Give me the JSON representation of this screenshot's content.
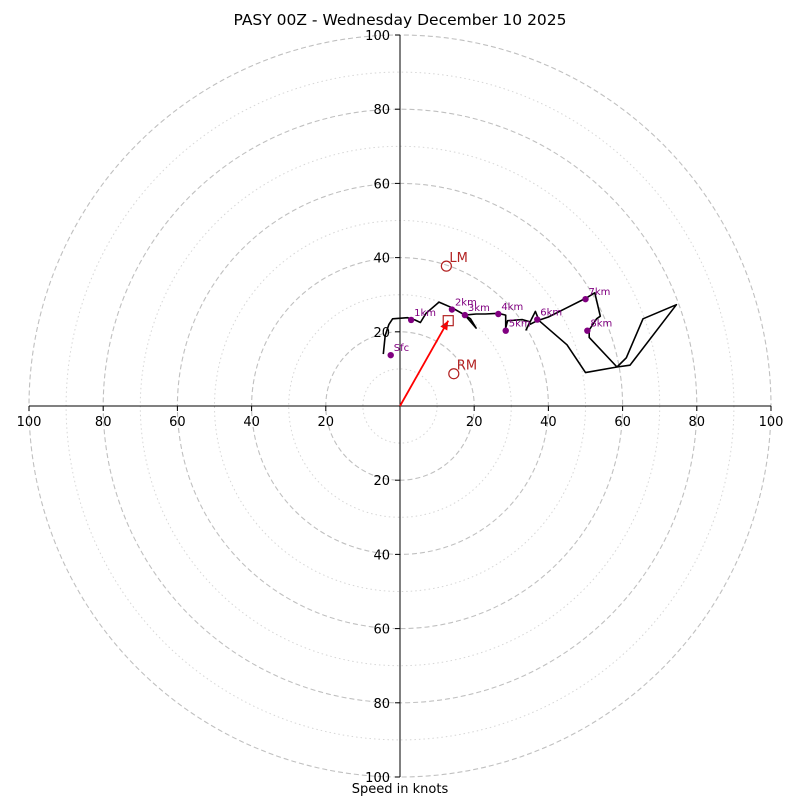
{
  "chart_data": {
    "type": "hodograph",
    "title": "PASY 00Z - Wednesday December 10 2025",
    "xlabel": "Speed in knots",
    "axis_range": [
      -100,
      100
    ],
    "major_rings": [
      20,
      40,
      60,
      80,
      100
    ],
    "minor_rings": [
      10,
      30,
      50,
      70,
      90
    ],
    "tick_values": [
      20,
      40,
      60,
      80,
      100
    ],
    "colors": {
      "trace": "#000000",
      "height_marker": "#800080",
      "motion": "#b22222",
      "shear_vector": "#ff0000",
      "ring": "#c0c0c0"
    },
    "trace": [
      [
        -4.5,
        14
      ],
      [
        -4,
        19
      ],
      [
        -3,
        22
      ],
      [
        -2,
        23.5
      ],
      [
        2,
        23.8
      ],
      [
        4,
        23.2
      ],
      [
        5.5,
        22.5
      ],
      [
        7,
        25
      ],
      [
        10.5,
        28
      ],
      [
        14,
        26.5
      ],
      [
        17,
        24.8
      ],
      [
        19,
        23.5
      ],
      [
        20.5,
        21
      ],
      [
        17.5,
        24.5
      ],
      [
        20.5,
        24.8
      ],
      [
        23,
        24.8
      ],
      [
        26.5,
        25
      ],
      [
        28.5,
        24.5
      ],
      [
        28.5,
        21
      ],
      [
        29,
        23
      ],
      [
        33,
        23.3
      ],
      [
        35,
        22.7
      ],
      [
        34,
        20.5
      ],
      [
        36.5,
        25.5
      ],
      [
        37.5,
        23
      ],
      [
        45,
        16.5
      ],
      [
        50,
        9
      ],
      [
        58.5,
        10.5
      ],
      [
        61,
        13
      ],
      [
        65.5,
        23.5
      ],
      [
        74.5,
        27.3
      ],
      [
        62,
        11
      ],
      [
        58.5,
        10.5
      ],
      [
        51,
        18.5
      ],
      [
        51,
        20.5
      ],
      [
        53,
        23.5
      ],
      [
        54,
        24.2
      ],
      [
        52.5,
        30.5
      ],
      [
        50,
        29
      ],
      [
        45,
        26.5
      ],
      [
        40,
        24
      ],
      [
        37,
        23
      ],
      [
        35,
        22
      ]
    ],
    "height_markers": [
      {
        "label": "Sfc",
        "u": -2.5,
        "v": 13.7
      },
      {
        "label": "1km",
        "u": 3,
        "v": 23.2
      },
      {
        "label": "2km",
        "u": 14,
        "v": 26
      },
      {
        "label": "3km",
        "u": 17.5,
        "v": 24.5
      },
      {
        "label": "4km",
        "u": 26.5,
        "v": 24.8
      },
      {
        "label": "5km",
        "u": 28.5,
        "v": 20.3
      },
      {
        "label": "6km",
        "u": 37,
        "v": 23.3
      },
      {
        "label": "7km",
        "u": 50,
        "v": 28.8
      },
      {
        "label": "8km",
        "u": 50.5,
        "v": 20.3
      }
    ],
    "motions": [
      {
        "label": "LM",
        "u": 12.5,
        "v": 37.7,
        "marker": "circle"
      },
      {
        "label": "RM",
        "u": 14.5,
        "v": 8.7,
        "marker": "circle"
      },
      {
        "label": "",
        "u": 13,
        "v": 23,
        "marker": "square"
      }
    ],
    "shear_vector": {
      "from": [
        0,
        0
      ],
      "to": [
        13,
        23
      ]
    }
  }
}
